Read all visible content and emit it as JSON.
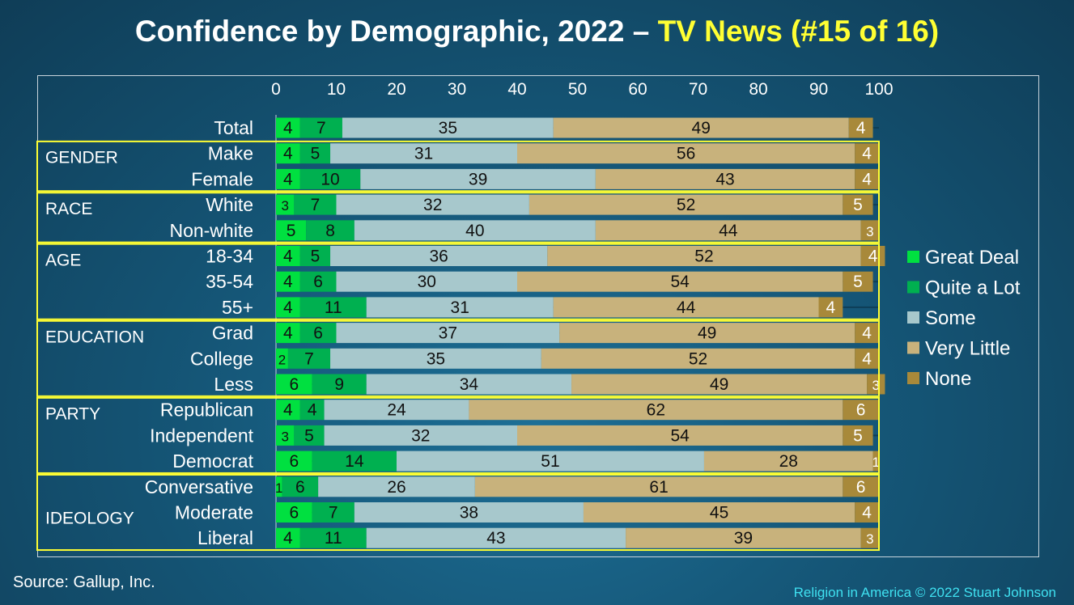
{
  "title": {
    "main": "Confidence by Demographic, 2022 – ",
    "highlight": "TV News (#15 of 16)"
  },
  "footer": {
    "source": "Source: Gallup, Inc.",
    "credit": "Religion in America © 2022 Stuart Johnson"
  },
  "colors": {
    "great_deal": "#00e040",
    "quite_a_lot": "#00b050",
    "some": "#a7c8cc",
    "very_little": "#c8b27c",
    "none": "#a8893a",
    "group_border": "#ffff33",
    "text_white": "#ffffff",
    "highlight_yellow": "#ffff33"
  },
  "chart_data": {
    "type": "bar",
    "orientation": "horizontal",
    "stacked": true,
    "xlim": [
      0,
      100
    ],
    "x_ticks": [
      "0",
      "10",
      "20",
      "30",
      "40",
      "50",
      "60",
      "70",
      "80",
      "90",
      "100"
    ],
    "legend_position": "right",
    "legend": [
      "Great Deal",
      "Quite a Lot",
      "Some",
      "Very Little",
      "None"
    ],
    "categories": [
      "Total",
      "Make",
      "Female",
      "White",
      "Non-white",
      "18-34",
      "35-54",
      "55+",
      "Grad",
      "College",
      "Less",
      "Republican",
      "Independent",
      "Democrat",
      "Conversative",
      "Moderate",
      "Liberal"
    ],
    "series": [
      {
        "name": "Great Deal",
        "values": [
          4,
          4,
          4,
          3,
          5,
          4,
          4,
          4,
          4,
          2,
          6,
          4,
          3,
          6,
          1,
          6,
          4
        ]
      },
      {
        "name": "Quite a Lot",
        "values": [
          7,
          5,
          10,
          7,
          8,
          5,
          6,
          11,
          6,
          7,
          9,
          4,
          5,
          14,
          6,
          7,
          11
        ]
      },
      {
        "name": "Some",
        "values": [
          35,
          31,
          39,
          32,
          40,
          36,
          30,
          31,
          37,
          35,
          34,
          24,
          32,
          51,
          26,
          38,
          43
        ]
      },
      {
        "name": "Very Little",
        "values": [
          49,
          56,
          43,
          52,
          44,
          52,
          54,
          44,
          49,
          52,
          49,
          62,
          54,
          28,
          61,
          45,
          39
        ]
      },
      {
        "name": "None",
        "values": [
          4,
          4,
          4,
          5,
          3,
          4,
          5,
          4,
          4,
          4,
          3,
          6,
          5,
          1,
          6,
          4,
          3
        ]
      }
    ],
    "groups": [
      {
        "name": "GENDER",
        "rows": [
          "Make",
          "Female"
        ]
      },
      {
        "name": "RACE",
        "rows": [
          "White",
          "Non-white"
        ]
      },
      {
        "name": "AGE",
        "rows": [
          "18-34",
          "35-54",
          "55+"
        ]
      },
      {
        "name": "EDUCATION",
        "rows": [
          "Grad",
          "College",
          "Less"
        ]
      },
      {
        "name": "PARTY",
        "rows": [
          "Republican",
          "Independent",
          "Democrat"
        ]
      },
      {
        "name": "IDEOLOGY",
        "rows": [
          "Conversative",
          "Moderate",
          "Liberal"
        ]
      }
    ]
  }
}
